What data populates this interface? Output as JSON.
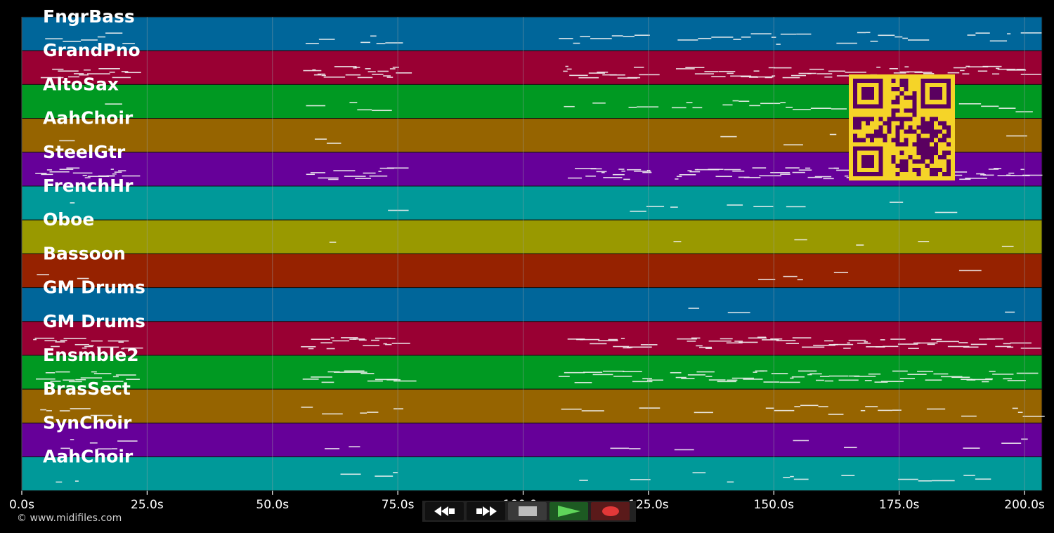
{
  "tracks": [
    {
      "name": "FngrBass",
      "color": "#00669a"
    },
    {
      "name": "GrandPno",
      "color": "#990033"
    },
    {
      "name": "AltoSax",
      "color": "#009922"
    },
    {
      "name": "AahChoir",
      "color": "#966400"
    },
    {
      "name": "SteelGtr",
      "color": "#660099"
    },
    {
      "name": "FrenchHr",
      "color": "#009999"
    },
    {
      "name": "Oboe",
      "color": "#999900"
    },
    {
      "name": "Bassoon",
      "color": "#962200"
    },
    {
      "name": "GM Drums",
      "color": "#00669a"
    },
    {
      "name": "GM Drums",
      "color": "#990033"
    },
    {
      "name": "Ensmble2",
      "color": "#009922"
    },
    {
      "name": "BrasSect",
      "color": "#966400"
    },
    {
      "name": "SynChoir",
      "color": "#660099"
    },
    {
      "name": "AahChoir",
      "color": "#009999"
    }
  ],
  "timeline": {
    "start_s": 0,
    "end_s": 203.5,
    "ticks": [
      "0.0s",
      "25.0s",
      "50.0s",
      "75.0s",
      "100.0s",
      "125.0s",
      "150.0s",
      "175.0s",
      "200.0s"
    ],
    "tick_values": [
      0,
      25,
      50,
      75,
      100,
      125,
      150,
      175,
      200
    ]
  },
  "copyright": "© www.midifiles.com",
  "transport": {
    "rewind": "rewind-icon",
    "fast_forward": "fast-forward-icon",
    "stop": "stop-icon",
    "play": "play-icon",
    "record": "record-icon"
  },
  "colors": {
    "qr_fg": "#5a0060",
    "qr_bg": "#f5d428",
    "grid": "#9aa0a6"
  }
}
